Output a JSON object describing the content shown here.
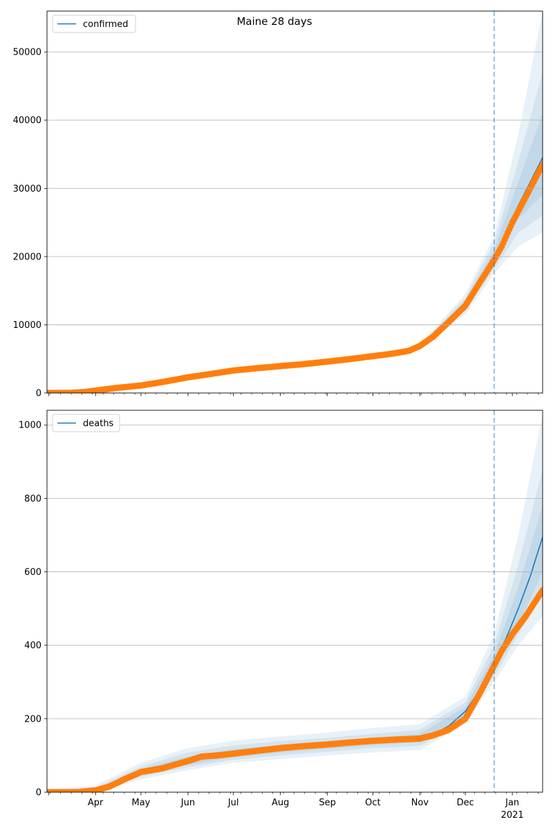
{
  "figure": {
    "title": "Maine 28 days",
    "colors": {
      "line": "#1f77b4",
      "points": "#ff7f0e",
      "band": "#1f77b4",
      "grid": "#b0b0b0",
      "vline": "#1f77b4"
    }
  },
  "chart_data": [
    {
      "type": "line",
      "series_name": "confirmed",
      "legend_placement": "top-left",
      "grid": "y",
      "x_axis": {
        "type": "date",
        "xlim": [
          "2020-02-29",
          "2021-01-21"
        ],
        "tick_labels": []
      },
      "ylim": [
        0,
        56000
      ],
      "yticks": [
        0,
        10000,
        20000,
        30000,
        40000,
        50000
      ],
      "forecast_start": "2020-12-20",
      "observed": [
        [
          "2020-02-29",
          0
        ],
        [
          "2020-03-15",
          10
        ],
        [
          "2020-03-25",
          150
        ],
        [
          "2020-04-01",
          350
        ],
        [
          "2020-04-15",
          750
        ],
        [
          "2020-05-01",
          1100
        ],
        [
          "2020-05-15",
          1600
        ],
        [
          "2020-06-01",
          2300
        ],
        [
          "2020-06-15",
          2750
        ],
        [
          "2020-07-01",
          3300
        ],
        [
          "2020-07-15",
          3600
        ],
        [
          "2020-08-01",
          3950
        ],
        [
          "2020-08-15",
          4200
        ],
        [
          "2020-09-01",
          4600
        ],
        [
          "2020-09-15",
          4950
        ],
        [
          "2020-10-01",
          5400
        ],
        [
          "2020-10-15",
          5800
        ],
        [
          "2020-10-25",
          6200
        ],
        [
          "2020-11-01",
          6900
        ],
        [
          "2020-11-10",
          8300
        ],
        [
          "2020-11-20",
          10400
        ],
        [
          "2020-12-01",
          12800
        ],
        [
          "2020-12-10",
          16000
        ],
        [
          "2020-12-20",
          19500
        ],
        [
          "2020-12-25",
          21500
        ],
        [
          "2021-01-01",
          25000
        ],
        [
          "2021-01-10",
          28800
        ],
        [
          "2021-01-21",
          33500
        ]
      ],
      "model": [
        [
          "2020-02-29",
          0
        ],
        [
          "2020-03-15",
          10
        ],
        [
          "2020-03-25",
          150
        ],
        [
          "2020-04-01",
          350
        ],
        [
          "2020-04-15",
          750
        ],
        [
          "2020-05-01",
          1100
        ],
        [
          "2020-05-15",
          1600
        ],
        [
          "2020-06-01",
          2300
        ],
        [
          "2020-06-15",
          2750
        ],
        [
          "2020-07-01",
          3300
        ],
        [
          "2020-07-15",
          3600
        ],
        [
          "2020-08-01",
          3950
        ],
        [
          "2020-08-15",
          4200
        ],
        [
          "2020-09-01",
          4600
        ],
        [
          "2020-09-15",
          4950
        ],
        [
          "2020-10-01",
          5400
        ],
        [
          "2020-10-15",
          5800
        ],
        [
          "2020-10-25",
          6200
        ],
        [
          "2020-11-01",
          6900
        ],
        [
          "2020-11-10",
          8400
        ],
        [
          "2020-11-20",
          10400
        ],
        [
          "2020-12-01",
          13000
        ],
        [
          "2020-12-10",
          16000
        ],
        [
          "2020-12-20",
          19900
        ],
        [
          "2020-12-27",
          23000
        ],
        [
          "2021-01-05",
          27500
        ],
        [
          "2021-01-13",
          31000
        ],
        [
          "2021-01-21",
          34500
        ]
      ],
      "bands": [
        {
          "upper": [
            [
              "2020-11-01",
              7100
            ],
            [
              "2020-12-01",
              14500
            ],
            [
              "2020-12-20",
              23000
            ],
            [
              "2021-01-05",
              38000
            ],
            [
              "2021-01-21",
              56000
            ]
          ],
          "lower": [
            [
              "2020-11-01",
              6700
            ],
            [
              "2020-12-01",
              11500
            ],
            [
              "2020-12-20",
              17500
            ],
            [
              "2021-01-05",
              21500
            ],
            [
              "2021-01-21",
              23500
            ]
          ]
        },
        {
          "upper": [
            [
              "2020-11-01",
              7000
            ],
            [
              "2020-12-01",
              14000
            ],
            [
              "2020-12-20",
              22000
            ],
            [
              "2021-01-05",
              34000
            ],
            [
              "2021-01-21",
              47000
            ]
          ],
          "lower": [
            [
              "2020-11-01",
              6800
            ],
            [
              "2020-12-01",
              12000
            ],
            [
              "2020-12-20",
              18200
            ],
            [
              "2021-01-05",
              23500
            ],
            [
              "2021-01-21",
              26000
            ]
          ]
        },
        {
          "upper": [
            [
              "2020-11-01",
              6950
            ],
            [
              "2020-12-01",
              13500
            ],
            [
              "2020-12-20",
              21000
            ],
            [
              "2021-01-05",
              31000
            ],
            [
              "2021-01-21",
              41000
            ]
          ],
          "lower": [
            [
              "2020-11-01",
              6850
            ],
            [
              "2020-12-01",
              12500
            ],
            [
              "2020-12-20",
              19000
            ],
            [
              "2021-01-05",
              25500
            ],
            [
              "2021-01-21",
              29000
            ]
          ]
        }
      ]
    },
    {
      "type": "line",
      "series_name": "deaths",
      "legend_placement": "top-left",
      "grid": "y",
      "x_axis": {
        "type": "date",
        "xlim": [
          "2020-02-29",
          "2021-01-21"
        ],
        "tick_labels": [
          [
            "2020-04-01",
            "Apr",
            ""
          ],
          [
            "2020-05-01",
            "May",
            ""
          ],
          [
            "2020-06-01",
            "Jun",
            ""
          ],
          [
            "2020-07-01",
            "Jul",
            ""
          ],
          [
            "2020-08-01",
            "Aug",
            ""
          ],
          [
            "2020-09-01",
            "Sep",
            ""
          ],
          [
            "2020-10-01",
            "Oct",
            ""
          ],
          [
            "2020-11-01",
            "Nov",
            ""
          ],
          [
            "2020-12-01",
            "Dec",
            ""
          ],
          [
            "2021-01-01",
            "Jan",
            "2021"
          ]
        ]
      },
      "ylim": [
        0,
        1040
      ],
      "yticks": [
        0,
        200,
        400,
        600,
        800,
        1000
      ],
      "forecast_start": "2020-12-20",
      "observed": [
        [
          "2020-02-29",
          0
        ],
        [
          "2020-03-20",
          0
        ],
        [
          "2020-04-01",
          5
        ],
        [
          "2020-04-10",
          15
        ],
        [
          "2020-04-20",
          35
        ],
        [
          "2020-05-01",
          55
        ],
        [
          "2020-05-15",
          65
        ],
        [
          "2020-06-01",
          85
        ],
        [
          "2020-06-10",
          97
        ],
        [
          "2020-06-20",
          100
        ],
        [
          "2020-07-01",
          105
        ],
        [
          "2020-07-15",
          112
        ],
        [
          "2020-08-01",
          120
        ],
        [
          "2020-08-15",
          125
        ],
        [
          "2020-09-01",
          130
        ],
        [
          "2020-09-15",
          135
        ],
        [
          "2020-10-01",
          140
        ],
        [
          "2020-10-15",
          143
        ],
        [
          "2020-11-01",
          146
        ],
        [
          "2020-11-10",
          155
        ],
        [
          "2020-11-20",
          170
        ],
        [
          "2020-12-01",
          200
        ],
        [
          "2020-12-10",
          265
        ],
        [
          "2020-12-20",
          345
        ],
        [
          "2020-12-25",
          385
        ],
        [
          "2021-01-01",
          430
        ],
        [
          "2021-01-10",
          480
        ],
        [
          "2021-01-21",
          550
        ]
      ],
      "model": [
        [
          "2020-02-29",
          0
        ],
        [
          "2020-03-20",
          0
        ],
        [
          "2020-04-01",
          5
        ],
        [
          "2020-04-10",
          15
        ],
        [
          "2020-04-20",
          35
        ],
        [
          "2020-05-01",
          55
        ],
        [
          "2020-05-15",
          65
        ],
        [
          "2020-06-01",
          85
        ],
        [
          "2020-06-10",
          97
        ],
        [
          "2020-06-20",
          100
        ],
        [
          "2020-07-01",
          105
        ],
        [
          "2020-07-15",
          112
        ],
        [
          "2020-08-01",
          120
        ],
        [
          "2020-08-15",
          125
        ],
        [
          "2020-09-01",
          130
        ],
        [
          "2020-09-15",
          135
        ],
        [
          "2020-10-01",
          140
        ],
        [
          "2020-10-15",
          143
        ],
        [
          "2020-11-01",
          148
        ],
        [
          "2020-11-10",
          158
        ],
        [
          "2020-11-20",
          180
        ],
        [
          "2020-12-01",
          220
        ],
        [
          "2020-12-10",
          275
        ],
        [
          "2020-12-20",
          350
        ],
        [
          "2020-12-28",
          420
        ],
        [
          "2021-01-05",
          500
        ],
        [
          "2021-01-13",
          590
        ],
        [
          "2021-01-21",
          695
        ]
      ],
      "bands": [
        {
          "upper": [
            [
              "2020-02-29",
              8
            ],
            [
              "2020-04-01",
              18
            ],
            [
              "2020-05-01",
              80
            ],
            [
              "2020-06-01",
              120
            ],
            [
              "2020-07-01",
              140
            ],
            [
              "2020-08-01",
              152
            ],
            [
              "2020-09-01",
              162
            ],
            [
              "2020-10-01",
              175
            ],
            [
              "2020-11-01",
              185
            ],
            [
              "2020-12-01",
              260
            ],
            [
              "2020-12-20",
              430
            ],
            [
              "2021-01-05",
              700
            ],
            [
              "2021-01-21",
              1030
            ]
          ],
          "lower": [
            [
              "2020-02-29",
              0
            ],
            [
              "2020-04-01",
              0
            ],
            [
              "2020-05-01",
              35
            ],
            [
              "2020-06-01",
              60
            ],
            [
              "2020-07-01",
              80
            ],
            [
              "2020-08-01",
              90
            ],
            [
              "2020-09-01",
              100
            ],
            [
              "2020-10-01",
              108
            ],
            [
              "2020-11-01",
              115
            ],
            [
              "2020-12-01",
              185
            ],
            [
              "2020-12-20",
              300
            ],
            [
              "2021-01-05",
              400
            ],
            [
              "2021-01-21",
              480
            ]
          ]
        },
        {
          "upper": [
            [
              "2020-02-29",
              5
            ],
            [
              "2020-04-01",
              13
            ],
            [
              "2020-05-01",
              70
            ],
            [
              "2020-06-01",
              108
            ],
            [
              "2020-07-01",
              127
            ],
            [
              "2020-08-01",
              139
            ],
            [
              "2020-09-01",
              148
            ],
            [
              "2020-10-01",
              159
            ],
            [
              "2020-11-01",
              170
            ],
            [
              "2020-12-01",
              245
            ],
            [
              "2020-12-20",
              400
            ],
            [
              "2021-01-05",
              620
            ],
            [
              "2021-01-21",
              880
            ]
          ],
          "lower": [
            [
              "2020-02-29",
              0
            ],
            [
              "2020-04-01",
              1
            ],
            [
              "2020-05-01",
              42
            ],
            [
              "2020-06-01",
              68
            ],
            [
              "2020-07-01",
              88
            ],
            [
              "2020-08-01",
              100
            ],
            [
              "2020-09-01",
              110
            ],
            [
              "2020-10-01",
              120
            ],
            [
              "2020-11-01",
              126
            ],
            [
              "2020-12-01",
              195
            ],
            [
              "2020-12-20",
              315
            ],
            [
              "2021-01-05",
              430
            ],
            [
              "2021-01-21",
              540
            ]
          ]
        },
        {
          "upper": [
            [
              "2020-02-29",
              3
            ],
            [
              "2020-04-01",
              9
            ],
            [
              "2020-05-01",
              63
            ],
            [
              "2020-06-01",
              97
            ],
            [
              "2020-07-01",
              117
            ],
            [
              "2020-08-01",
              129
            ],
            [
              "2020-09-01",
              138
            ],
            [
              "2020-10-01",
              148
            ],
            [
              "2020-11-01",
              159
            ],
            [
              "2020-12-01",
              232
            ],
            [
              "2020-12-20",
              375
            ],
            [
              "2021-01-05",
              560
            ],
            [
              "2021-01-21",
              780
            ]
          ],
          "lower": [
            [
              "2020-02-29",
              0
            ],
            [
              "2020-04-01",
              2
            ],
            [
              "2020-05-01",
              48
            ],
            [
              "2020-06-01",
              75
            ],
            [
              "2020-07-01",
              95
            ],
            [
              "2020-08-01",
              108
            ],
            [
              "2020-09-01",
              118
            ],
            [
              "2020-10-01",
              128
            ],
            [
              "2020-11-01",
              136
            ],
            [
              "2020-12-01",
              205
            ],
            [
              "2020-12-20",
              330
            ],
            [
              "2021-01-05",
              455
            ],
            [
              "2021-01-21",
              600
            ]
          ]
        }
      ]
    }
  ]
}
